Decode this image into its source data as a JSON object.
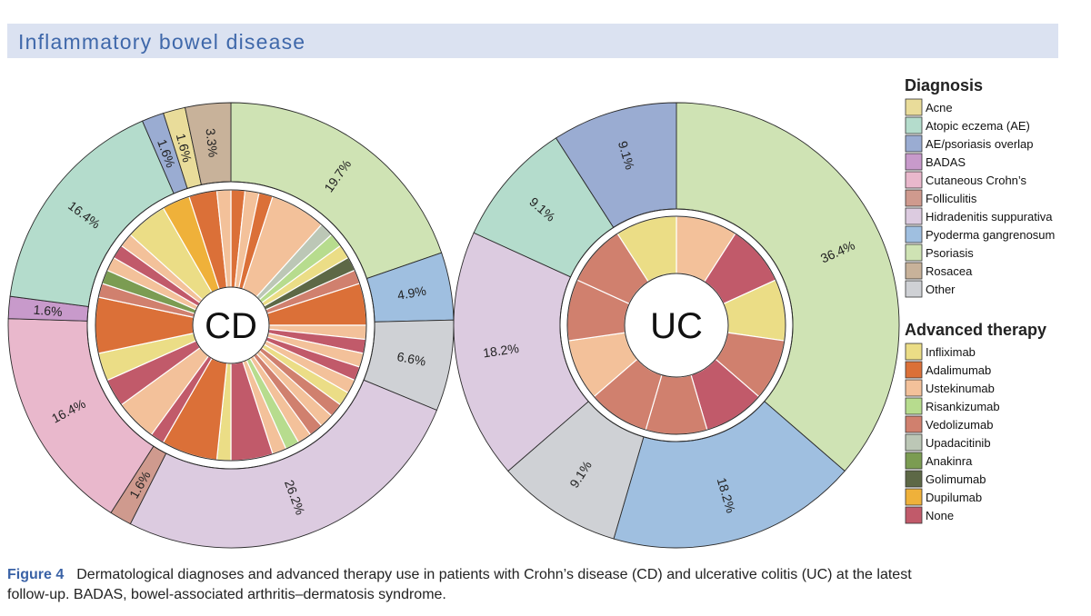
{
  "header": {
    "title": "Inflammatory bowel disease"
  },
  "caption": {
    "label": "Figure 4",
    "line1": "Dermatological diagnoses and advanced therapy use in patients with Crohn’s disease (CD) and ulcerative colitis (UC) at the latest",
    "line2": "follow-up. BADAS, bowel-associated arthritis–dermatosis syndrome."
  },
  "colors": {
    "diagnosis": {
      "Acne": "#e9dc9a",
      "Atopic eczema (AE)": "#b4dccc",
      "AE/psoriasis overlap": "#9aacd2",
      "BADAS": "#c89acb",
      "Cutaneous Crohn’s": "#e9b8cc",
      "Folliculitis": "#cf9a8e",
      "Hidradenitis suppurativa": "#dccbe0",
      "Pyoderma gangrenosum": "#9fbfe0",
      "Psoriasis": "#cfe3b4",
      "Rosacea": "#c8b29a",
      "Other": "#cfd1d5"
    },
    "therapy": {
      "Infliximab": "#ebdd86",
      "Adalimumab": "#db7038",
      "Ustekinumab": "#f3c19a",
      "Risankizumab": "#b7dc8e",
      "Vedolizumab": "#d0806e",
      "Upadacitinib": "#bcc7b6",
      "Anakinra": "#7b9c52",
      "Golimumab": "#5d6846",
      "Dupilumab": "#efb13a",
      "None": "#c15a6a"
    }
  },
  "chart_data": [
    {
      "type": "pie",
      "subtype": "nested-donut",
      "title": "CD",
      "outer_ring": {
        "label": "Diagnosis",
        "slices": [
          {
            "name": "Psoriasis",
            "value": 19.7,
            "label": "19.7%"
          },
          {
            "name": "Pyoderma gangrenosum",
            "value": 4.9,
            "label": "4.9%"
          },
          {
            "name": "Other",
            "value": 6.6,
            "label": "6.6%"
          },
          {
            "name": "Hidradenitis suppurativa",
            "value": 26.2,
            "label": "26.2%"
          },
          {
            "name": "Folliculitis",
            "value": 1.6,
            "label": "1.6%"
          },
          {
            "name": "Cutaneous Crohn’s",
            "value": 16.4,
            "label": "16.4%"
          },
          {
            "name": "BADAS",
            "value": 1.6,
            "label": "1.6%"
          },
          {
            "name": "Atopic eczema (AE)",
            "value": 16.4,
            "label": "16.4%"
          },
          {
            "name": "AE/psoriasis overlap",
            "value": 1.6,
            "label": "1.6%"
          },
          {
            "name": "Acne",
            "value": 1.6,
            "label": "1.6%"
          },
          {
            "name": "Rosacea",
            "value": 3.3,
            "label": "3.3%"
          }
        ]
      },
      "inner_ring": {
        "label": "Advanced therapy",
        "slices": [
          {
            "name": "Adalimumab",
            "value": 1
          },
          {
            "name": "Ustekinumab",
            "value": 1
          },
          {
            "name": "Adalimumab",
            "value": 1
          },
          {
            "name": "Ustekinumab",
            "value": 4
          },
          {
            "name": "Upadacitinib",
            "value": 1
          },
          {
            "name": "Risankizumab",
            "value": 1
          },
          {
            "name": "Infliximab",
            "value": 1
          },
          {
            "name": "Golimumab",
            "value": 1
          },
          {
            "name": "Vedolizumab",
            "value": 1
          },
          {
            "name": "Adalimumab",
            "value": 3
          },
          {
            "name": "Ustekinumab",
            "value": 1
          },
          {
            "name": "None",
            "value": 1
          },
          {
            "name": "Ustekinumab",
            "value": 1
          },
          {
            "name": "None",
            "value": 1
          },
          {
            "name": "Ustekinumab",
            "value": 1
          },
          {
            "name": "Infliximab",
            "value": 1
          },
          {
            "name": "Vedolizumab",
            "value": 1
          },
          {
            "name": "Ustekinumab",
            "value": 1
          },
          {
            "name": "Vedolizumab",
            "value": 1
          },
          {
            "name": "Ustekinumab",
            "value": 1
          },
          {
            "name": "Risankizumab",
            "value": 1
          },
          {
            "name": "Ustekinumab",
            "value": 1
          },
          {
            "name": "None",
            "value": 3
          },
          {
            "name": "Infliximab",
            "value": 1
          },
          {
            "name": "Adalimumab",
            "value": 4
          },
          {
            "name": "None",
            "value": 1
          },
          {
            "name": "Ustekinumab",
            "value": 3
          },
          {
            "name": "None",
            "value": 2
          },
          {
            "name": "Infliximab",
            "value": 2
          },
          {
            "name": "Adalimumab",
            "value": 4
          },
          {
            "name": "Vedolizumab",
            "value": 1
          },
          {
            "name": "Anakinra",
            "value": 1
          },
          {
            "name": "Ustekinumab",
            "value": 1
          },
          {
            "name": "None",
            "value": 1
          },
          {
            "name": "Ustekinumab",
            "value": 1
          },
          {
            "name": "Infliximab",
            "value": 3
          },
          {
            "name": "Dupilumab",
            "value": 2
          },
          {
            "name": "Adalimumab",
            "value": 2
          },
          {
            "name": "Ustekinumab",
            "value": 1
          }
        ]
      }
    },
    {
      "type": "pie",
      "subtype": "nested-donut",
      "title": "UC",
      "outer_ring": {
        "label": "Diagnosis",
        "slices": [
          {
            "name": "Psoriasis",
            "value": 36.4,
            "label": "36.4%"
          },
          {
            "name": "Pyoderma gangrenosum",
            "value": 18.2,
            "label": "18.2%"
          },
          {
            "name": "Other",
            "value": 9.1,
            "label": "9.1%"
          },
          {
            "name": "Hidradenitis suppurativa",
            "value": 18.2,
            "label": "18.2%"
          },
          {
            "name": "Atopic eczema (AE)",
            "value": 9.1,
            "label": "9.1%"
          },
          {
            "name": "AE/psoriasis overlap",
            "value": 9.1,
            "label": "9.1%"
          }
        ]
      },
      "inner_ring": {
        "label": "Advanced therapy",
        "slices": [
          {
            "name": "Ustekinumab",
            "value": 1
          },
          {
            "name": "None",
            "value": 1
          },
          {
            "name": "Infliximab",
            "value": 1
          },
          {
            "name": "Vedolizumab",
            "value": 1
          },
          {
            "name": "None",
            "value": 1
          },
          {
            "name": "Vedolizumab",
            "value": 1
          },
          {
            "name": "Vedolizumab",
            "value": 1
          },
          {
            "name": "Ustekinumab",
            "value": 1
          },
          {
            "name": "Vedolizumab",
            "value": 1
          },
          {
            "name": "Vedolizumab",
            "value": 1
          },
          {
            "name": "Infliximab",
            "value": 1
          }
        ]
      }
    }
  ],
  "legend": {
    "diagnosis_title": "Diagnosis",
    "diagnosis_items": [
      "Acne",
      "Atopic eczema (AE)",
      "AE/psoriasis overlap",
      "BADAS",
      "Cutaneous Crohn’s",
      "Folliculitis",
      "Hidradenitis suppurativa",
      "Pyoderma gangrenosum",
      "Psoriasis",
      "Rosacea",
      "Other"
    ],
    "therapy_title": "Advanced therapy",
    "therapy_items": [
      "Infliximab",
      "Adalimumab",
      "Ustekinumab",
      "Risankizumab",
      "Vedolizumab",
      "Upadacitinib",
      "Anakinra",
      "Golimumab",
      "Dupilumab",
      "None"
    ]
  }
}
